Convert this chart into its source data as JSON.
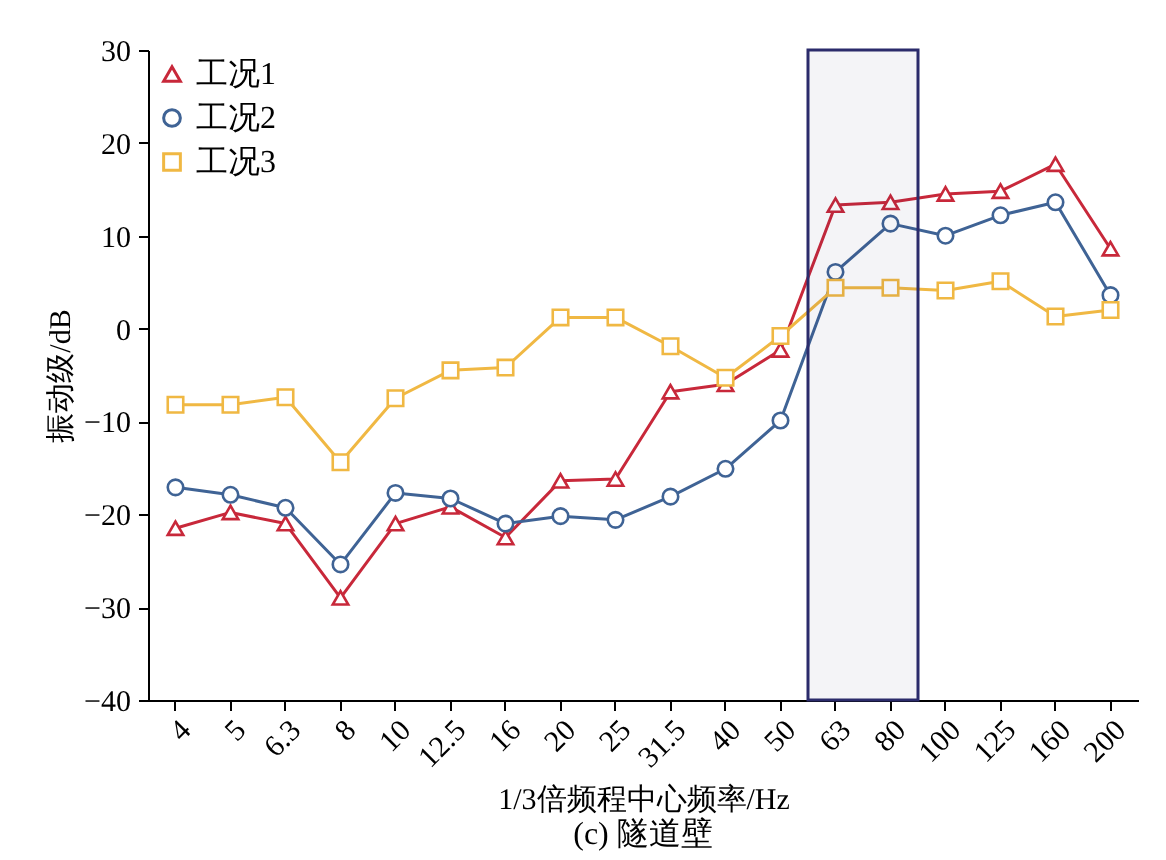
{
  "chart_data": {
    "type": "line",
    "title": "(c) 隧道壁",
    "xlabel": "1/3倍频程中心频率/Hz",
    "ylabel": "振动级/dB",
    "categories": [
      "4",
      "5",
      "6.3",
      "8",
      "10",
      "12.5",
      "16",
      "20",
      "25",
      "31.5",
      "40",
      "50",
      "63",
      "80",
      "100",
      "125",
      "160",
      "200"
    ],
    "ylim": [
      -40,
      30
    ],
    "yticks": [
      -40,
      -30,
      -20,
      -10,
      0,
      10,
      20,
      30
    ],
    "grid": false,
    "legend": "top left",
    "bands": [
      {
        "axis": "x",
        "from": "63",
        "to": "80",
        "color": "#2b2b6b"
      }
    ],
    "series": [
      {
        "name": "工况1",
        "color": "#c8283a",
        "marker": "triangle",
        "values": [
          -21.5,
          -19.8,
          -21,
          -29,
          -21,
          -19.2,
          -22.5,
          -16.4,
          -16.2,
          -6.8,
          -6,
          -2.3,
          13.3,
          13.6,
          14.5,
          14.8,
          17.7,
          8.6
        ]
      },
      {
        "name": "工况2",
        "color": "#3f6395",
        "marker": "circle",
        "values": [
          -17.1,
          -17.9,
          -19.3,
          -25.4,
          -17.7,
          -18.3,
          -21,
          -20.2,
          -20.6,
          -18.1,
          -15.1,
          -9.9,
          6.1,
          11.3,
          10,
          12.2,
          13.6,
          3.6
        ]
      },
      {
        "name": "工况3",
        "color": "#f0b843",
        "marker": "square",
        "values": [
          -8.2,
          -8.2,
          -7.4,
          -14.4,
          -7.5,
          -4.5,
          -4.2,
          1.2,
          1.2,
          -1.9,
          -5.3,
          -0.8,
          4.4,
          4.4,
          4.1,
          5.1,
          1.3,
          2.0
        ]
      }
    ]
  }
}
